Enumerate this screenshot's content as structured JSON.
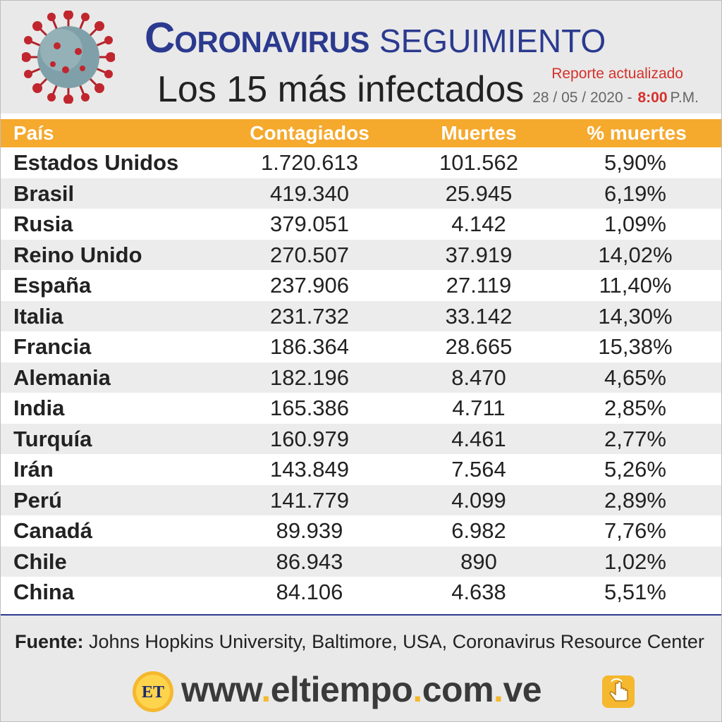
{
  "header": {
    "title_first_letter": "C",
    "title_rest": "ORONAVIRUS",
    "title_second": "SEGUIMIENTO",
    "subtitle": "Los 15 más infectados",
    "report_label": "Reporte actualizado",
    "report_date": "28 / 05 / 2020 -",
    "report_time": "8:00",
    "report_ampm": "P.M."
  },
  "table": {
    "headers": [
      "País",
      "Contagiados",
      "Muertes",
      "% muertes"
    ],
    "rows": [
      [
        "Estados Unidos",
        "1.720.613",
        "101.562",
        "5,90%"
      ],
      [
        "Brasil",
        "419.340",
        "25.945",
        "6,19%"
      ],
      [
        "Rusia",
        "379.051",
        "4.142",
        "1,09%"
      ],
      [
        "Reino Unido",
        "270.507",
        "37.919",
        "14,02%"
      ],
      [
        "España",
        "237.906",
        "27.119",
        "11,40%"
      ],
      [
        "Italia",
        "231.732",
        "33.142",
        "14,30%"
      ],
      [
        "Francia",
        "186.364",
        "28.665",
        "15,38%"
      ],
      [
        "Alemania",
        "182.196",
        "8.470",
        "4,65%"
      ],
      [
        "India",
        "165.386",
        "4.711",
        "2,85%"
      ],
      [
        "Turquía",
        "160.979",
        "4.461",
        "2,77%"
      ],
      [
        "Irán",
        "143.849",
        "7.564",
        "5,26%"
      ],
      [
        "Perú",
        "141.779",
        "4.099",
        "2,89%"
      ],
      [
        "Canadá",
        "89.939",
        "6.982",
        "7,76%"
      ],
      [
        "Chile",
        "86.943",
        "890",
        "1,02%"
      ],
      [
        "China",
        "84.106",
        "4.638",
        "5,51%"
      ]
    ]
  },
  "footer": {
    "source_label": "Fuente:",
    "source_text": " Johns Hopkins University, Baltimore, USA, Coronavirus Resource Center",
    "logo_text": "ET",
    "site_part1": "www",
    "site_part2": "eltiempo",
    "site_part3": "com",
    "site_part4": "ve",
    "site_dot": "."
  },
  "colors": {
    "title_blue": "#2b3a8f",
    "header_orange": "#f5a92d",
    "accent_red": "#d6312b",
    "logo_yellow": "#f5b82e"
  },
  "icons": [
    "virus-icon",
    "eltiempo-logo-icon",
    "click-hand-icon"
  ]
}
